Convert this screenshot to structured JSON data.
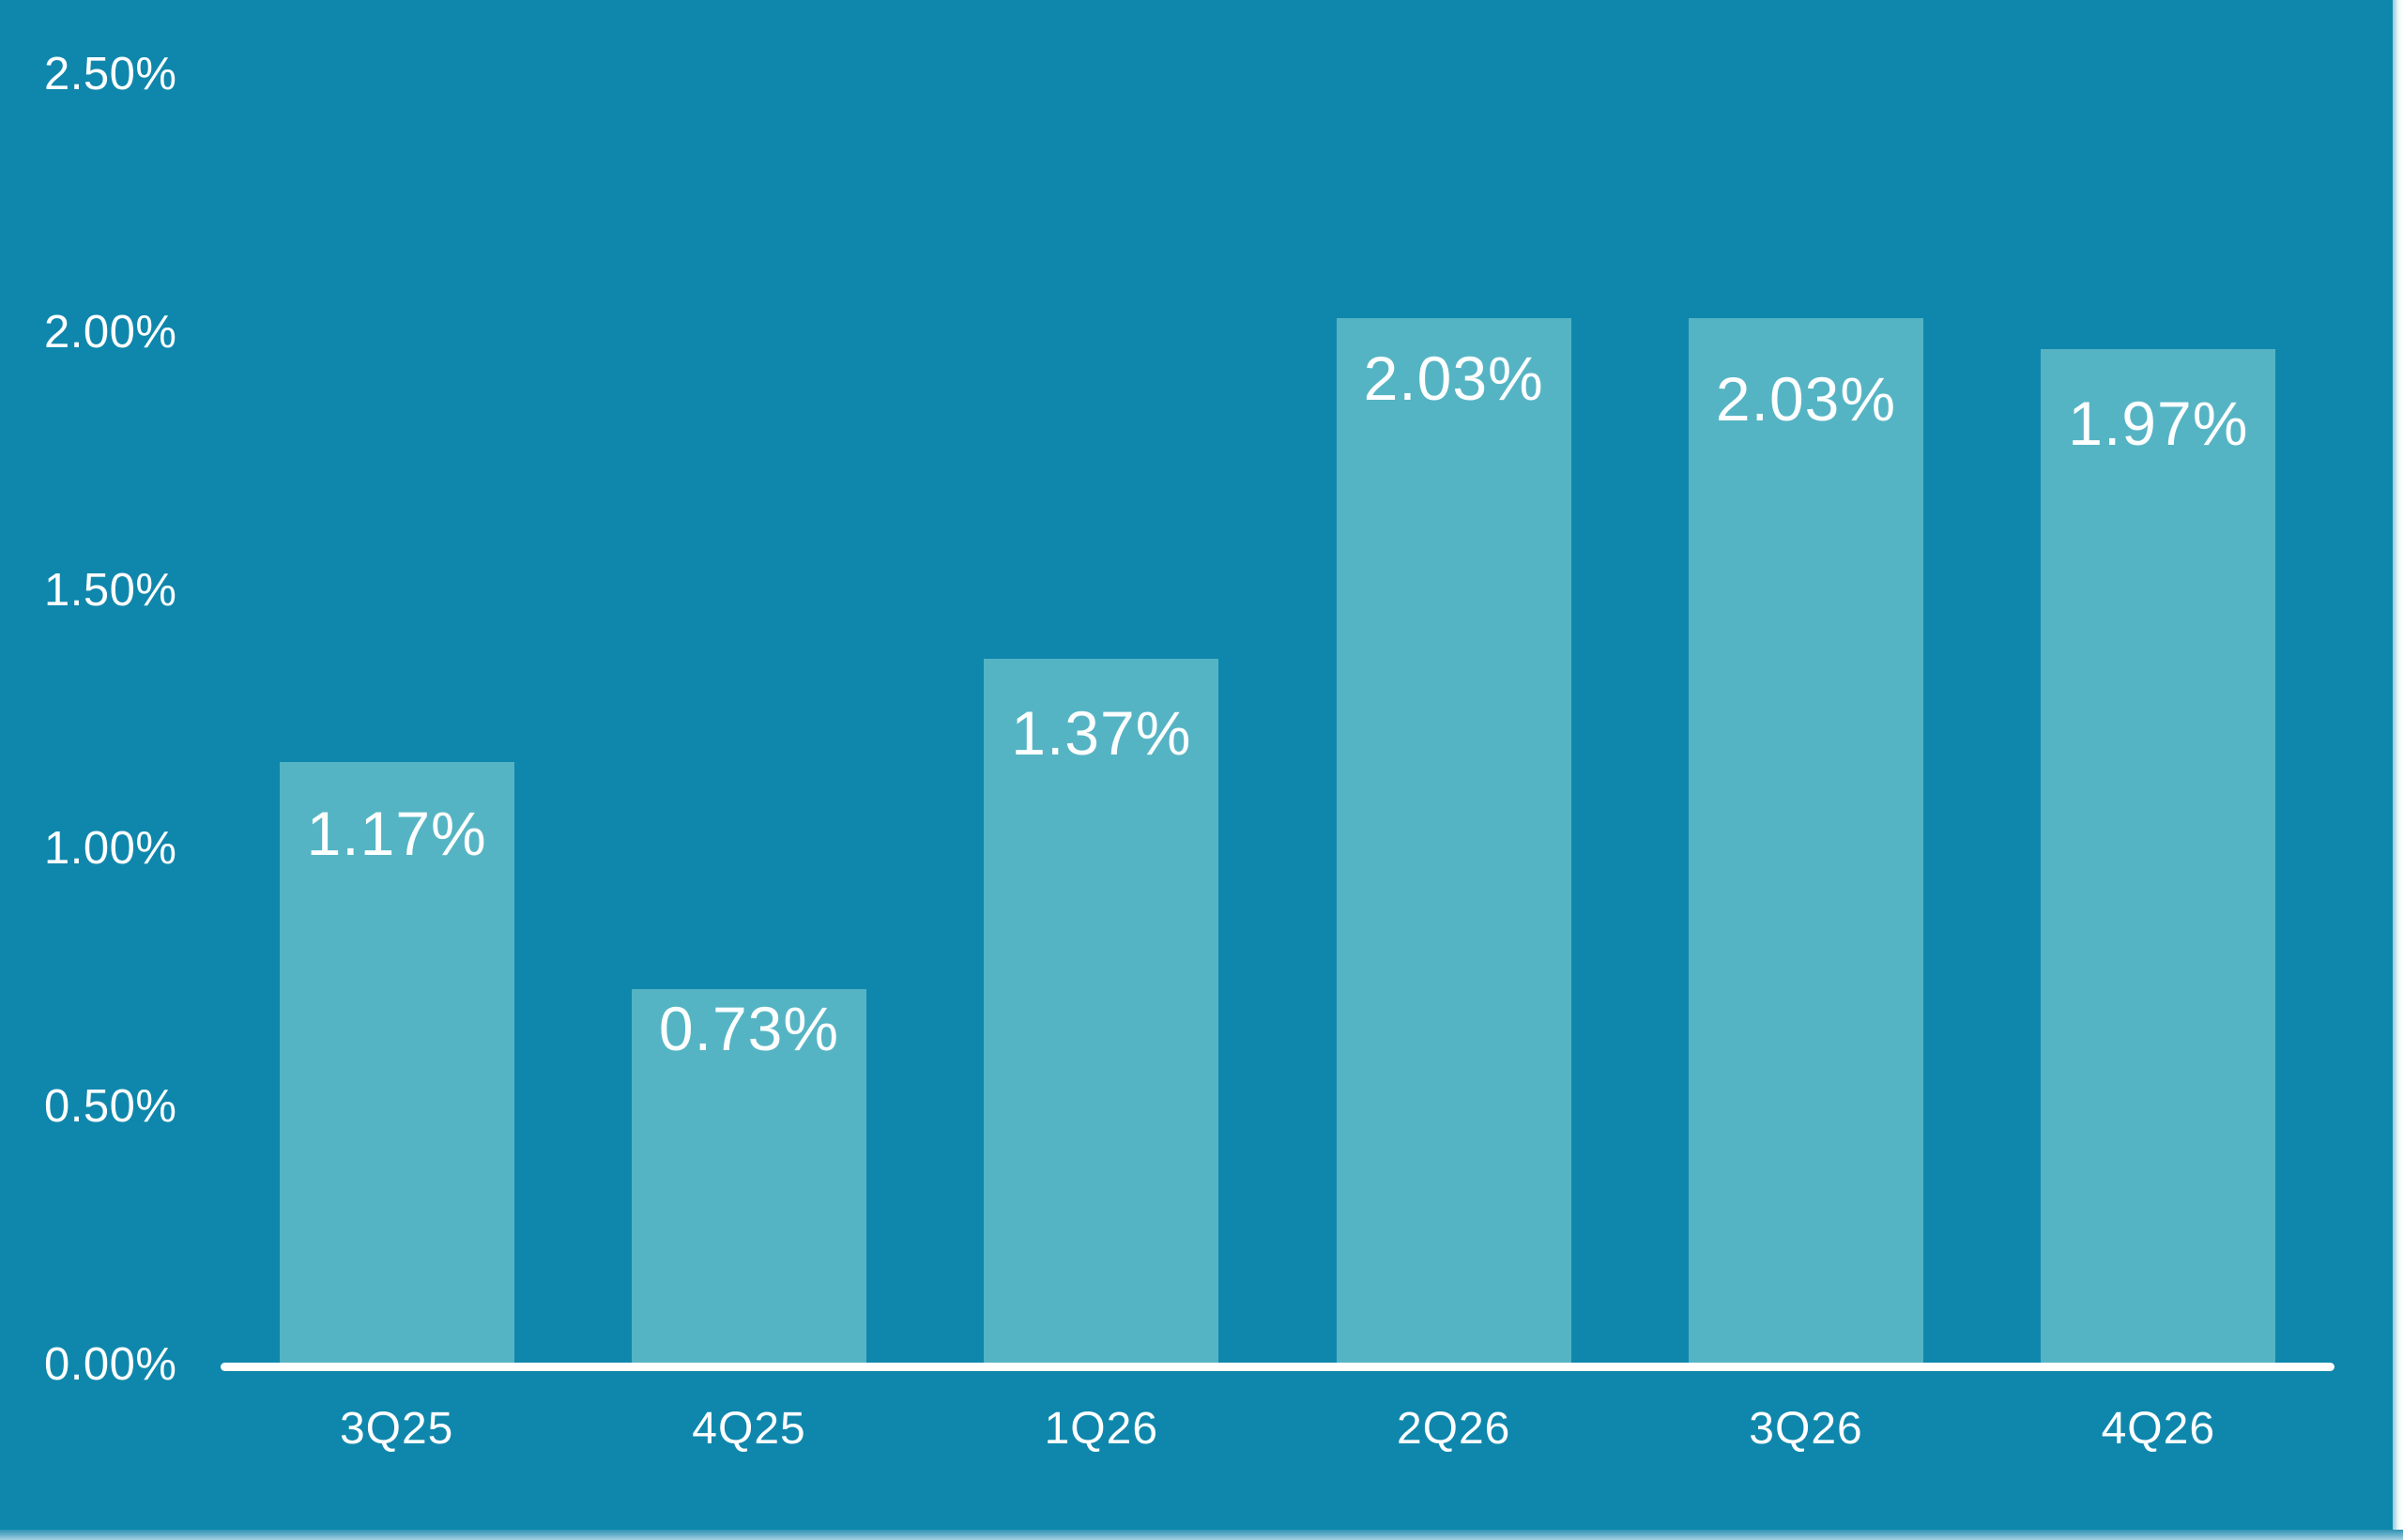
{
  "chart_data": {
    "type": "bar",
    "title": "",
    "xlabel": "",
    "ylabel": "",
    "categories": [
      "3Q25",
      "4Q25",
      "1Q26",
      "2Q26",
      "3Q26",
      "4Q26"
    ],
    "values": [
      1.17,
      0.73,
      1.37,
      2.03,
      2.03,
      1.97
    ],
    "value_labels": [
      "1.17%",
      "0.73%",
      "1.37%",
      "2.03%",
      "2.03%",
      "1.97%"
    ],
    "y_ticks": [
      {
        "label": "2.50%",
        "value": 2.5
      },
      {
        "label": "2.00%",
        "value": 2.0
      },
      {
        "label": "1.50%",
        "value": 1.5
      },
      {
        "label": "1.00%",
        "value": 1.0
      },
      {
        "label": "0.50%",
        "value": 0.5
      },
      {
        "label": "0.00%",
        "value": 0.0
      }
    ],
    "ylim": [
      0,
      2.5
    ],
    "grid": "off",
    "legend": "none",
    "colors": {
      "background": "#0f87ac",
      "bar": "#55b4c4",
      "label_text": "#fdfefe",
      "tick_text": "#ffffff",
      "axis_line": "#ffffff"
    }
  }
}
